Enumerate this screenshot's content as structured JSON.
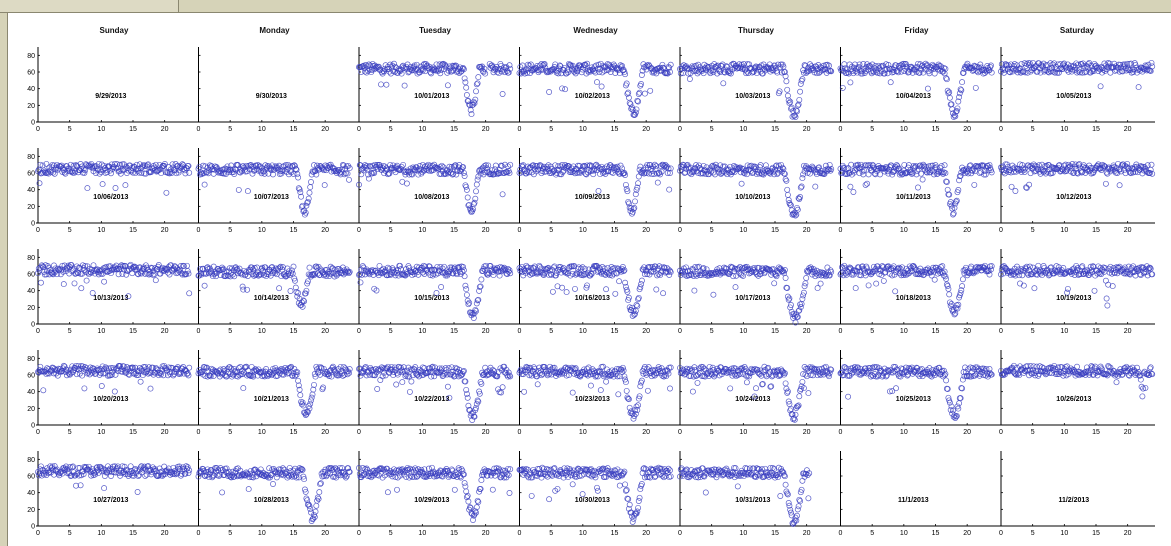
{
  "chart_data": {
    "type": "scatter",
    "layout": "calendar small multiples (5 weeks x 7 days)",
    "day_headers": [
      "Sunday",
      "Monday",
      "Tuesday",
      "Wednesday",
      "Thursday",
      "Friday",
      "Saturday"
    ],
    "x_range": [
      0,
      24
    ],
    "x_ticks": [
      0,
      5,
      10,
      15,
      20
    ],
    "y_range": [
      0,
      90
    ],
    "y_ticks": [
      0,
      20,
      40,
      60,
      80
    ],
    "marker": "open circle",
    "marker_color": "#3a3ec0",
    "weeks": [
      [
        "9/29/2013",
        "9/30/2013",
        "10/01/2013",
        "10/02/2013",
        "10/03/2013",
        "10/04/2013",
        "10/05/2013"
      ],
      [
        "10/06/2013",
        "10/07/2013",
        "10/08/2013",
        "10/09/2013",
        "10/10/2013",
        "10/11/2013",
        "10/12/2013"
      ],
      [
        "10/13/2013",
        "10/14/2013",
        "10/15/2013",
        "10/16/2013",
        "10/17/2013",
        "10/18/2013",
        "10/19/2013"
      ],
      [
        "10/20/2013",
        "10/21/2013",
        "10/22/2013",
        "10/23/2013",
        "10/24/2013",
        "10/25/2013",
        "10/26/2013"
      ],
      [
        "10/27/2013",
        "10/28/2013",
        "10/29/2013",
        "10/30/2013",
        "10/31/2013",
        "11/1/2013",
        "11/2/2013"
      ]
    ],
    "series_profiles": [
      [
        null,
        null,
        {
          "base": 64,
          "dip": [
            16.5,
            19
          ],
          "min": 14,
          "gap": [
            20,
            20.6
          ]
        },
        {
          "base": 64,
          "dip": [
            16.5,
            19.5
          ],
          "min": 10
        },
        {
          "base": 64,
          "dip": [
            16.5,
            19.5
          ],
          "min": 8
        },
        {
          "base": 64,
          "dip": [
            16.5,
            19.5
          ],
          "min": 10
        },
        {
          "base": 65,
          "dip": null,
          "min": null
        }
      ],
      [
        {
          "base": 65,
          "dip": null,
          "min": null
        },
        {
          "base": 64,
          "dip": [
            15.5,
            18
          ],
          "min": 14
        },
        {
          "base": 64,
          "dip": [
            16.5,
            19
          ],
          "min": 16
        },
        {
          "base": 64,
          "dip": [
            16.5,
            19
          ],
          "min": 14
        },
        {
          "base": 64,
          "dip": [
            16.5,
            19.5
          ],
          "min": 8
        },
        {
          "base": 64,
          "dip": [
            16.5,
            19
          ],
          "min": 14
        },
        {
          "base": 65,
          "dip": null,
          "min": null
        }
      ],
      [
        {
          "base": 65,
          "dip": null,
          "min": null
        },
        {
          "base": 63,
          "dip": [
            15,
            17.5
          ],
          "min": 22
        },
        {
          "base": 64,
          "dip": [
            16.5,
            19.5
          ],
          "min": 8
        },
        {
          "base": 64,
          "dip": [
            16.5,
            19.5
          ],
          "min": 12
        },
        {
          "base": 63,
          "dip": [
            16.5,
            20
          ],
          "min": 6
        },
        {
          "base": 64,
          "dip": [
            16.5,
            19.5
          ],
          "min": 14
        },
        {
          "base": 64,
          "dip": [
            16.5,
            17
          ],
          "min": 22
        }
      ],
      [
        {
          "base": 65,
          "dip": null,
          "min": null
        },
        {
          "base": 64,
          "dip": [
            15.5,
            18.5
          ],
          "min": 12
        },
        {
          "base": 64,
          "dip": [
            16.5,
            19.5
          ],
          "min": 10
        },
        {
          "base": 64,
          "dip": [
            16.5,
            19.5
          ],
          "min": 10
        },
        {
          "base": 64,
          "dip": [
            16.5,
            19.5
          ],
          "min": 10
        },
        {
          "base": 64,
          "dip": [
            16.5,
            19.5
          ],
          "min": 10
        },
        {
          "base": 65,
          "dip": [
            22,
            22.6
          ],
          "min": 36
        }
      ],
      [
        {
          "base": 66,
          "dip": null,
          "min": null
        },
        {
          "base": 64,
          "dip": [
            16.5,
            19.5
          ],
          "min": 10
        },
        {
          "base": 64,
          "dip": [
            16.5,
            19.5
          ],
          "min": 12
        },
        {
          "base": 64,
          "dip": [
            16.5,
            19.5
          ],
          "min": 8
        },
        {
          "base": 64,
          "dip": [
            16.5,
            19.5
          ],
          "min": 4,
          "end": 20.5
        },
        null,
        null
      ]
    ]
  }
}
